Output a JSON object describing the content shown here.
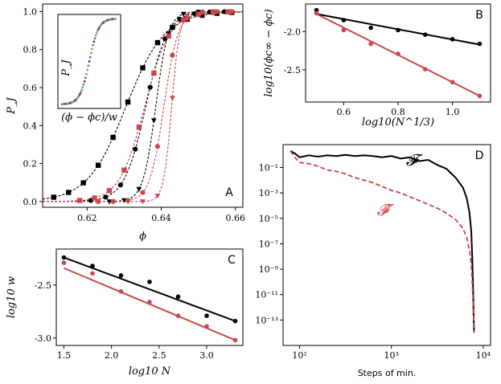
{
  "colors": {
    "black": "#000000",
    "red": "#c9474b",
    "inset_colors": [
      "#c9474b",
      "#6a9fcf",
      "#7ab648",
      "#8b6bb1",
      "#444444"
    ]
  },
  "chart_data": [
    {
      "id": "A",
      "type": "scatter+line",
      "letter": "A",
      "xlabel": "ϕ",
      "ylabel": "P_J",
      "xlim": [
        0.608,
        0.662
      ],
      "ylim": [
        -0.03,
        1.04
      ],
      "xticks": [
        0.62,
        0.64,
        0.66
      ],
      "xtick_labels": [
        "0.62",
        "0.64",
        "0.66"
      ],
      "yticks": [
        0,
        0.2,
        0.4,
        0.6,
        0.8,
        1.0
      ],
      "ytick_labels": [
        "0.0",
        "0.2",
        "0.4",
        "0.6",
        "0.8",
        "1.0"
      ],
      "series": [
        {
          "name": "black N1",
          "color": "black",
          "marker": "square",
          "phi_c": 0.6305,
          "w": 0.0052,
          "x": [
            0.611,
            0.615,
            0.619,
            0.623,
            0.627,
            0.631,
            0.635,
            0.639,
            0.643,
            0.647,
            0.651,
            0.655,
            0.659
          ]
        },
        {
          "name": "black N2",
          "color": "black",
          "marker": "circle",
          "phi_c": 0.6358,
          "w": 0.0029,
          "x": [
            0.621,
            0.625,
            0.629,
            0.633,
            0.637,
            0.641,
            0.645,
            0.649,
            0.653,
            0.657
          ]
        },
        {
          "name": "black N3",
          "color": "black",
          "marker": "triangle",
          "phi_c": 0.6385,
          "w": 0.0017,
          "x": [
            0.626,
            0.63,
            0.634,
            0.638,
            0.642,
            0.646,
            0.65,
            0.654,
            0.658
          ]
        },
        {
          "name": "red N1",
          "color": "red",
          "marker": "square",
          "phi_c": 0.6355,
          "w": 0.0034,
          "x": [
            0.618,
            0.622,
            0.626,
            0.63,
            0.634,
            0.638,
            0.642,
            0.646,
            0.65,
            0.654,
            0.658
          ]
        },
        {
          "name": "red N2",
          "color": "red",
          "marker": "circle",
          "phi_c": 0.6407,
          "w": 0.0019,
          "x": [
            0.623,
            0.627,
            0.631,
            0.635,
            0.639,
            0.643,
            0.647,
            0.651,
            0.655,
            0.659
          ]
        },
        {
          "name": "red N3",
          "color": "red",
          "marker": "triangle",
          "phi_c": 0.6428,
          "w": 0.0011,
          "x": [
            0.627,
            0.631,
            0.635,
            0.639,
            0.643,
            0.647,
            0.651,
            0.655,
            0.659
          ]
        }
      ],
      "inset": {
        "xlabel": "(ϕ − ϕc)/w",
        "ylabel": "P_J",
        "x_range": [
          -6,
          6
        ]
      }
    },
    {
      "id": "B",
      "type": "scatter+line",
      "letter": "B",
      "xlabel": "log10(N^1/3)",
      "ylabel": "log10(ϕc∞ − ϕc)",
      "xlim": [
        0.46,
        1.14
      ],
      "ylim": [
        -2.92,
        -1.64
      ],
      "xticks": [
        0.6,
        0.8,
        1.0
      ],
      "xtick_labels": [
        "0.6",
        "0.8",
        "1.0"
      ],
      "yticks": [
        -2.0,
        -2.5
      ],
      "ytick_labels": [
        "-2.0",
        "-2.5"
      ],
      "series": [
        {
          "name": "black",
          "color": "black",
          "x": [
            0.5,
            0.6,
            0.7,
            0.8,
            0.9,
            1.0,
            1.1
          ],
          "y": [
            -1.72,
            -1.85,
            -1.95,
            -1.98,
            -2.04,
            -2.1,
            -2.16
          ],
          "fit": [
            [
              0.5,
              -1.77
            ],
            [
              1.1,
              -2.17
            ]
          ]
        },
        {
          "name": "red",
          "color": "red",
          "x": [
            0.5,
            0.6,
            0.7,
            0.8,
            0.9,
            1.0,
            1.1
          ],
          "y": [
            -1.76,
            -1.98,
            -2.16,
            -2.29,
            -2.49,
            -2.66,
            -2.84
          ],
          "fit": [
            [
              0.5,
              -1.77
            ],
            [
              1.1,
              -2.84
            ]
          ]
        }
      ]
    },
    {
      "id": "C",
      "type": "scatter+line",
      "letter": "C",
      "xlabel": "log10 N",
      "ylabel": "log10 w",
      "xlim": [
        1.42,
        3.38
      ],
      "ylim": [
        -3.07,
        -2.16
      ],
      "xticks": [
        1.5,
        2.0,
        2.5,
        3.0
      ],
      "xtick_labels": [
        "1.5",
        "2.0",
        "2.5",
        "3.0"
      ],
      "yticks": [
        -2.5,
        -3.0
      ],
      "ytick_labels": [
        "-2.5",
        "-3.0"
      ],
      "series": [
        {
          "name": "black",
          "color": "black",
          "x": [
            1.5,
            1.8,
            2.1,
            2.4,
            2.7,
            3.0,
            3.3
          ],
          "y": [
            -2.24,
            -2.32,
            -2.41,
            -2.47,
            -2.61,
            -2.79,
            -2.84
          ],
          "fit": [
            [
              1.5,
              -2.24
            ],
            [
              3.3,
              -2.84
            ]
          ]
        },
        {
          "name": "red",
          "color": "red",
          "x": [
            1.5,
            1.8,
            2.1,
            2.4,
            2.7,
            3.0,
            3.3
          ],
          "y": [
            -2.29,
            -2.39,
            -2.56,
            -2.66,
            -2.79,
            -2.89,
            -3.02
          ],
          "fit": [
            [
              1.5,
              -2.34
            ],
            [
              3.3,
              -3.02
            ]
          ]
        }
      ]
    },
    {
      "id": "D",
      "type": "line",
      "letter": "D",
      "xlabel": "Steps of min.",
      "xscale": "log",
      "yscale": "log",
      "xlim_log10": [
        1.82,
        4.08
      ],
      "ylim_log10": [
        -15.0,
        0.8
      ],
      "xticks_log10": [
        2,
        3,
        4
      ],
      "xtick_labels": [
        "10²",
        "10³",
        "10⁴"
      ],
      "yticks_log10": [
        -1,
        -3,
        -5,
        -7,
        -9,
        -11,
        -13
      ],
      "ytick_labels": [
        "10⁻¹",
        "10⁻³",
        "10⁻⁵",
        "10⁻⁷",
        "10⁻⁹",
        "10⁻¹¹",
        "10⁻¹³"
      ],
      "series": [
        {
          "name": "F",
          "label": "𝓕",
          "color": "black",
          "dash": "solid",
          "log_x": [
            1.9,
            1.95,
            2.0,
            2.1,
            2.2,
            2.3,
            2.4,
            2.5,
            2.6,
            2.7,
            2.8,
            2.9,
            3.0,
            3.1,
            3.2,
            3.3,
            3.4,
            3.5,
            3.6,
            3.7,
            3.78,
            3.82,
            3.85,
            3.87,
            3.88,
            3.89,
            3.895,
            3.9
          ],
          "log_y": [
            0.3,
            0.1,
            -0.2,
            -0.05,
            -0.15,
            -0.05,
            -0.1,
            0.0,
            -0.1,
            -0.05,
            -0.1,
            -0.2,
            -0.1,
            -0.3,
            -0.2,
            -0.5,
            -0.4,
            -0.8,
            -1.1,
            -1.8,
            -2.6,
            -3.4,
            -4.5,
            -6.0,
            -8.0,
            -10.5,
            -12.5,
            -14.0
          ]
        },
        {
          "name": "F_hat",
          "label": "𝓕̂",
          "color": "red",
          "dash": "dashed",
          "log_x": [
            1.9,
            1.95,
            2.0,
            2.1,
            2.2,
            2.3,
            2.4,
            2.5,
            2.6,
            2.7,
            2.8,
            2.9,
            3.0,
            3.1,
            3.2,
            3.3,
            3.4,
            3.5,
            3.6,
            3.7,
            3.78,
            3.82,
            3.85,
            3.87,
            3.88,
            3.89,
            3.895,
            3.9
          ],
          "log_y": [
            0.3,
            -0.2,
            -0.6,
            -0.7,
            -0.9,
            -1.2,
            -1.3,
            -1.5,
            -1.8,
            -2.0,
            -2.2,
            -2.5,
            -2.8,
            -3.0,
            -3.3,
            -3.6,
            -3.9,
            -4.2,
            -4.6,
            -5.1,
            -5.8,
            -6.5,
            -7.5,
            -8.6,
            -10.0,
            -11.5,
            -12.8,
            -14.0
          ]
        }
      ]
    }
  ]
}
